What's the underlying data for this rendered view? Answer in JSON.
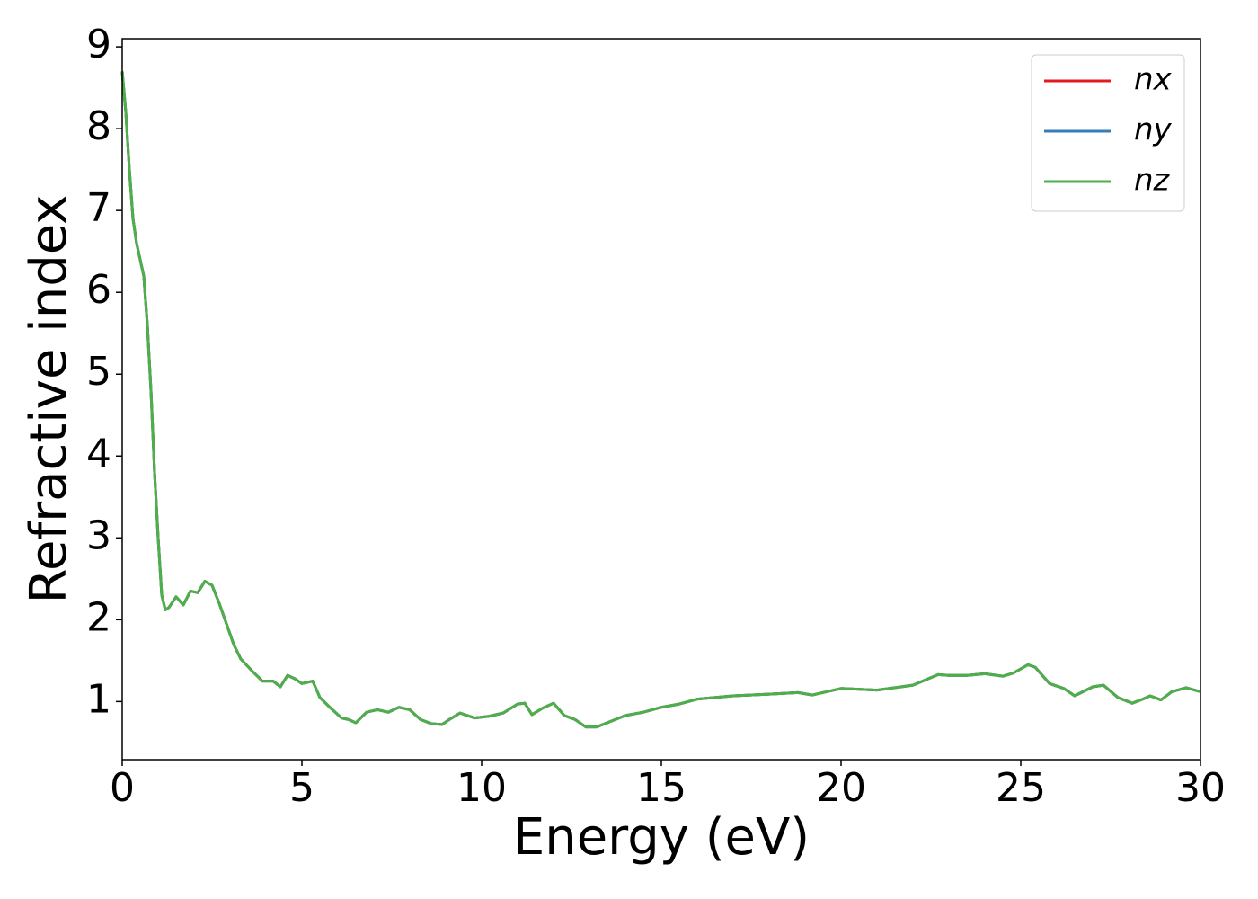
{
  "chart_data": {
    "type": "line",
    "xlabel": "Energy (eV)",
    "ylabel": "Refractive index",
    "x": [
      0,
      0.1,
      0.2,
      0.3,
      0.4,
      0.5,
      0.6,
      0.7,
      0.8,
      0.9,
      1.0,
      1.1,
      1.2,
      1.3,
      1.5,
      1.7,
      1.9,
      2.1,
      2.3,
      2.5,
      2.7,
      2.9,
      3.1,
      3.3,
      3.6,
      3.9,
      4.2,
      4.4,
      4.6,
      4.8,
      5.0,
      5.3,
      5.5,
      5.8,
      6.1,
      6.3,
      6.5,
      6.8,
      7.1,
      7.4,
      7.7,
      8.0,
      8.3,
      8.6,
      8.9,
      9.1,
      9.4,
      9.8,
      10.2,
      10.6,
      11.0,
      11.2,
      11.4,
      11.7,
      12.0,
      12.3,
      12.6,
      12.9,
      13.2,
      13.6,
      14.0,
      14.5,
      15.0,
      15.5,
      16.0,
      17.0,
      18.0,
      18.8,
      19.2,
      20.0,
      21.0,
      22.0,
      22.7,
      23.0,
      23.5,
      24.0,
      24.5,
      24.8,
      25.2,
      25.4,
      25.8,
      26.2,
      26.5,
      27.0,
      27.3,
      27.7,
      28.1,
      28.4,
      28.6,
      28.9,
      29.2,
      29.6,
      30.0
    ],
    "series": [
      {
        "name": "nx",
        "color": "#e41a1c",
        "values": [
          8.7,
          8.2,
          7.5,
          6.9,
          6.6,
          6.4,
          6.2,
          5.6,
          4.8,
          3.8,
          3.0,
          2.3,
          2.12,
          2.15,
          2.28,
          2.18,
          2.35,
          2.33,
          2.47,
          2.42,
          2.2,
          1.95,
          1.7,
          1.52,
          1.38,
          1.25,
          1.25,
          1.18,
          1.32,
          1.28,
          1.22,
          1.25,
          1.05,
          0.92,
          0.8,
          0.78,
          0.74,
          0.87,
          0.9,
          0.87,
          0.93,
          0.9,
          0.78,
          0.73,
          0.72,
          0.78,
          0.86,
          0.8,
          0.82,
          0.86,
          0.97,
          0.98,
          0.84,
          0.92,
          0.98,
          0.83,
          0.78,
          0.69,
          0.69,
          0.76,
          0.83,
          0.87,
          0.93,
          0.97,
          1.03,
          1.07,
          1.09,
          1.11,
          1.08,
          1.16,
          1.14,
          1.2,
          1.33,
          1.32,
          1.32,
          1.34,
          1.31,
          1.35,
          1.45,
          1.42,
          1.22,
          1.16,
          1.07,
          1.18,
          1.2,
          1.05,
          0.98,
          1.03,
          1.07,
          1.02,
          1.12,
          1.17,
          1.12
        ]
      },
      {
        "name": "ny",
        "color": "#377eb8",
        "values": [
          8.7,
          8.2,
          7.5,
          6.9,
          6.6,
          6.4,
          6.2,
          5.6,
          4.8,
          3.8,
          3.0,
          2.3,
          2.12,
          2.15,
          2.28,
          2.18,
          2.35,
          2.33,
          2.47,
          2.42,
          2.2,
          1.95,
          1.7,
          1.52,
          1.38,
          1.25,
          1.25,
          1.18,
          1.32,
          1.28,
          1.22,
          1.25,
          1.05,
          0.92,
          0.8,
          0.78,
          0.74,
          0.87,
          0.9,
          0.87,
          0.93,
          0.9,
          0.78,
          0.73,
          0.72,
          0.78,
          0.86,
          0.8,
          0.82,
          0.86,
          0.97,
          0.98,
          0.84,
          0.92,
          0.98,
          0.83,
          0.78,
          0.69,
          0.69,
          0.76,
          0.83,
          0.87,
          0.93,
          0.97,
          1.03,
          1.07,
          1.09,
          1.11,
          1.08,
          1.16,
          1.14,
          1.2,
          1.33,
          1.32,
          1.32,
          1.34,
          1.31,
          1.35,
          1.45,
          1.42,
          1.22,
          1.16,
          1.07,
          1.18,
          1.2,
          1.05,
          0.98,
          1.03,
          1.07,
          1.02,
          1.12,
          1.17,
          1.12
        ]
      },
      {
        "name": "nz",
        "color": "#4daf4a",
        "values": [
          8.7,
          8.2,
          7.5,
          6.9,
          6.6,
          6.4,
          6.2,
          5.6,
          4.8,
          3.8,
          3.0,
          2.3,
          2.12,
          2.15,
          2.28,
          2.18,
          2.35,
          2.33,
          2.47,
          2.42,
          2.2,
          1.95,
          1.7,
          1.52,
          1.38,
          1.25,
          1.25,
          1.18,
          1.32,
          1.28,
          1.22,
          1.25,
          1.05,
          0.92,
          0.8,
          0.78,
          0.74,
          0.87,
          0.9,
          0.87,
          0.93,
          0.9,
          0.78,
          0.73,
          0.72,
          0.78,
          0.86,
          0.8,
          0.82,
          0.86,
          0.97,
          0.98,
          0.84,
          0.92,
          0.98,
          0.83,
          0.78,
          0.69,
          0.69,
          0.76,
          0.83,
          0.87,
          0.93,
          0.97,
          1.03,
          1.07,
          1.09,
          1.11,
          1.08,
          1.16,
          1.14,
          1.2,
          1.33,
          1.32,
          1.32,
          1.34,
          1.31,
          1.35,
          1.45,
          1.42,
          1.22,
          1.16,
          1.07,
          1.18,
          1.2,
          1.05,
          0.98,
          1.03,
          1.07,
          1.02,
          1.12,
          1.17,
          1.12
        ]
      }
    ],
    "xlim": [
      0,
      30
    ],
    "xticks": [
      0,
      5,
      10,
      15,
      20,
      25,
      30
    ],
    "ylim": [
      0.29,
      9.1
    ],
    "yticks": [
      1,
      2,
      3,
      4,
      5,
      6,
      7,
      8,
      9
    ],
    "grid": false,
    "legend": "upper right"
  }
}
